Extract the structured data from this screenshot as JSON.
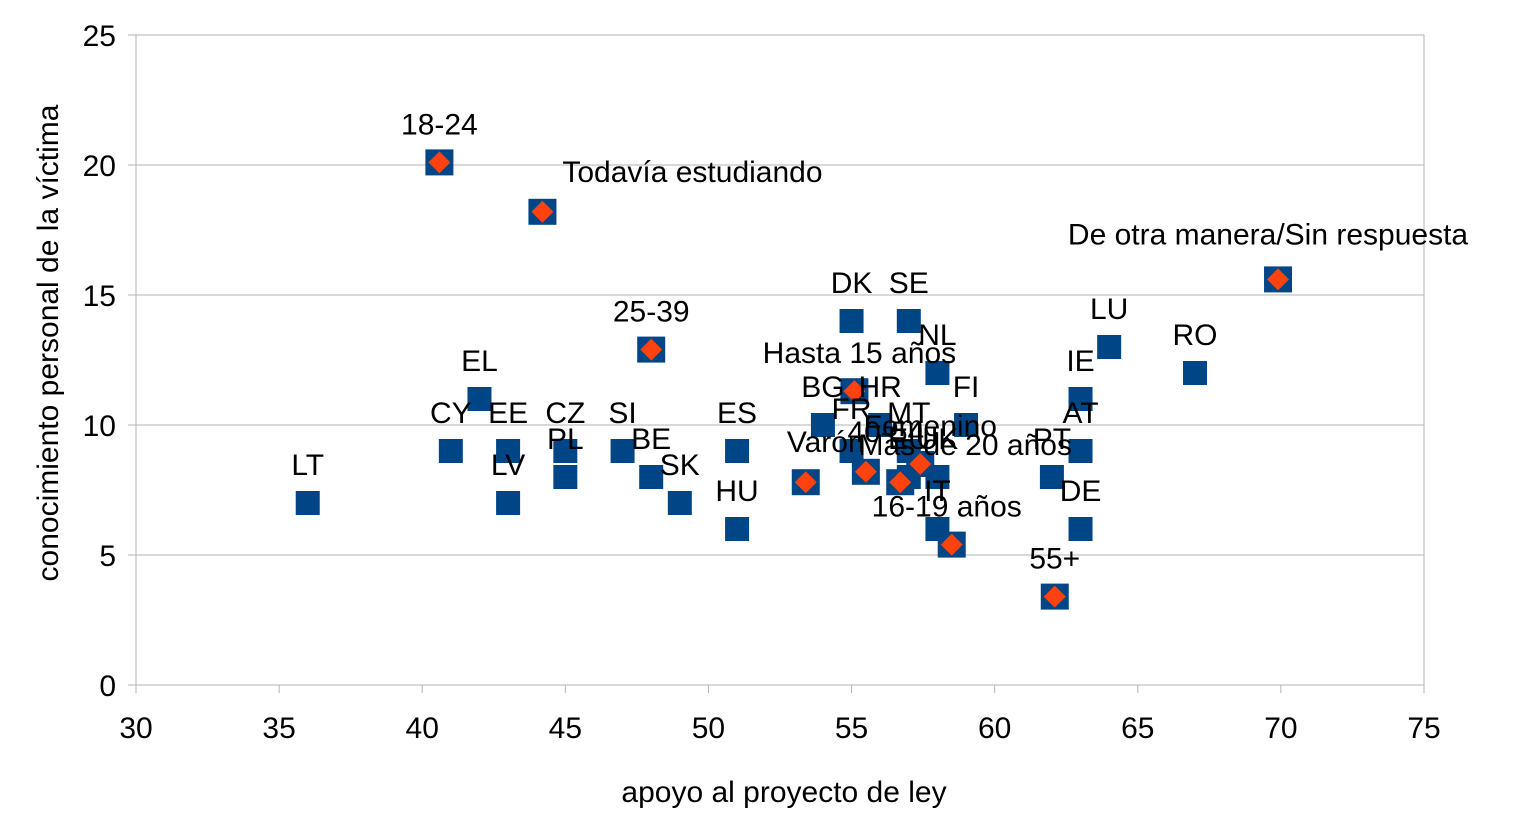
{
  "chart_data": {
    "type": "scatter",
    "title": "",
    "xlabel": "apoyo al proyecto de ley",
    "ylabel": "conocimiento personal de la víctima",
    "xlim": [
      30,
      75
    ],
    "ylim": [
      0,
      25
    ],
    "xticks": [
      30,
      35,
      40,
      45,
      50,
      55,
      60,
      65,
      70,
      75
    ],
    "yticks": [
      0,
      5,
      10,
      15,
      20,
      25
    ],
    "grid": true,
    "legend": "none",
    "colors": {
      "countries": "#004586",
      "groups": "#ff420e",
      "grid": "#b3b3b3"
    },
    "series": [
      {
        "name": "countries",
        "marker": "square",
        "points": [
          {
            "label": "LT",
            "x": 36,
            "y": 7
          },
          {
            "label": "CY",
            "x": 41,
            "y": 9
          },
          {
            "label": "EL",
            "x": 42,
            "y": 11
          },
          {
            "label": "EE",
            "x": 43,
            "y": 9
          },
          {
            "label": "LV",
            "x": 43,
            "y": 7
          },
          {
            "label": "CZ",
            "x": 45,
            "y": 9
          },
          {
            "label": "PL",
            "x": 45,
            "y": 8
          },
          {
            "label": "SI",
            "x": 47,
            "y": 9
          },
          {
            "label": "BE",
            "x": 48,
            "y": 8
          },
          {
            "label": "SK",
            "x": 49,
            "y": 7
          },
          {
            "label": "ES",
            "x": 51,
            "y": 9
          },
          {
            "label": "HU",
            "x": 51,
            "y": 6
          },
          {
            "label": "BG",
            "x": 54,
            "y": 10
          },
          {
            "label": "DK",
            "x": 55,
            "y": 14
          },
          {
            "label": "FR",
            "x": 55,
            "y": 9
          },
          {
            "label": "HR",
            "x": 56,
            "y": 10
          },
          {
            "label": "SE",
            "x": 57,
            "y": 14
          },
          {
            "label": "MT",
            "x": 57,
            "y": 9
          },
          {
            "label": "EU",
            "x": 57,
            "y": 8
          },
          {
            "label": "NL",
            "x": 58,
            "y": 12
          },
          {
            "label": "IT",
            "x": 58,
            "y": 6
          },
          {
            "label": "UK",
            "x": 58,
            "y": 8
          },
          {
            "label": "FI",
            "x": 59,
            "y": 10
          },
          {
            "label": "PT",
            "x": 62,
            "y": 8
          },
          {
            "label": "IE",
            "x": 63,
            "y": 11
          },
          {
            "label": "AT",
            "x": 63,
            "y": 9
          },
          {
            "label": "DE",
            "x": 63,
            "y": 6
          },
          {
            "label": "LU",
            "x": 64,
            "y": 13
          },
          {
            "label": "RO",
            "x": 67,
            "y": 12
          }
        ]
      },
      {
        "name": "groups",
        "marker": "diamond",
        "points": [
          {
            "label": "18-24",
            "x": 40.6,
            "y": 20.1
          },
          {
            "label": "Todavía estudiando",
            "x": 44.2,
            "y": 18.2
          },
          {
            "label": "25-39",
            "x": 48,
            "y": 12.9
          },
          {
            "label": "Hasta 15 años",
            "x": 55.1,
            "y": 11.3
          },
          {
            "label": "Varón",
            "x": 53.4,
            "y": 7.8
          },
          {
            "label": "40-54",
            "x": 55.5,
            "y": 8.2
          },
          {
            "label": "Femenino",
            "x": 57.4,
            "y": 8.5
          },
          {
            "label": "Más de 20 años",
            "x": 56.7,
            "y": 7.8
          },
          {
            "label": "16-19 años",
            "x": 58.5,
            "y": 5.4
          },
          {
            "label": "55+",
            "x": 62.1,
            "y": 3.4
          },
          {
            "label": "De otra manera/Sin respuesta",
            "x": 69.9,
            "y": 15.6
          }
        ]
      }
    ]
  }
}
